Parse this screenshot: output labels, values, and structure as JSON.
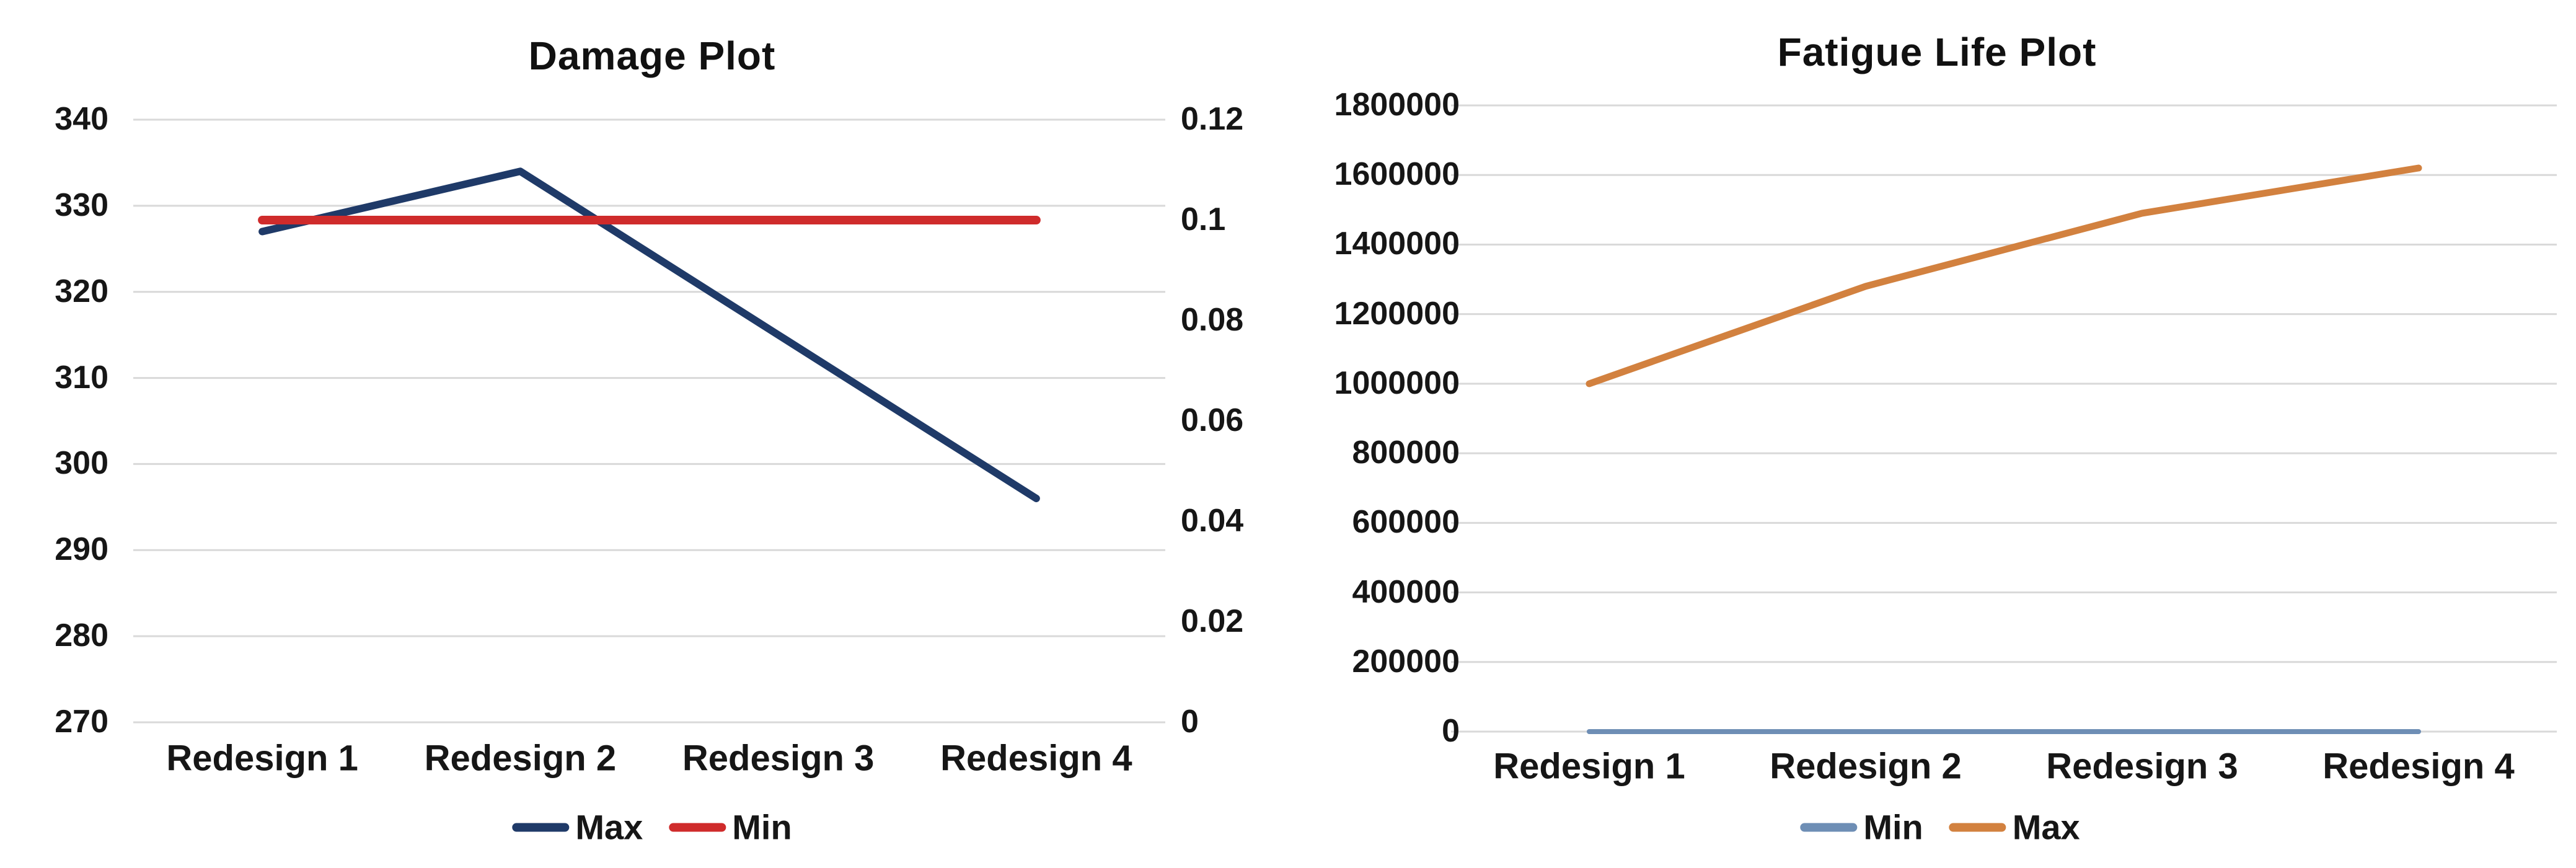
{
  "page": {
    "background": "#ffffff"
  },
  "chart_data": [
    {
      "type": "line",
      "title": "Damage Plot",
      "categories": [
        "Redesign 1",
        "Redesign 2",
        "Redesign 3",
        "Redesign 4"
      ],
      "series": [
        {
          "name": "Max",
          "axis": "primary",
          "color": "#1f3a68",
          "stroke_width": 12,
          "values": [
            327,
            334,
            315,
            296
          ]
        },
        {
          "name": "Min",
          "axis": "secondary",
          "color": "#cf2b2b",
          "stroke_width": 14,
          "values": [
            0.1,
            0.1,
            0.1,
            0.1
          ]
        }
      ],
      "primary_axis": {
        "min": 270,
        "max": 340,
        "ticks": [
          "340",
          "330",
          "320",
          "310",
          "300",
          "290",
          "280",
          "270"
        ]
      },
      "secondary_axis": {
        "min": 0,
        "max": 0.12,
        "ticks": [
          "0.12",
          "0.1",
          "0.08",
          "0.06",
          "0.04",
          "0.02",
          "0"
        ]
      },
      "legend": [
        {
          "label": "Max",
          "color": "#1f3a68"
        },
        {
          "label": "Min",
          "color": "#cf2b2b"
        }
      ],
      "grid": true,
      "legend_position": "bottom"
    },
    {
      "type": "line",
      "title": "Fatigue Life Plot",
      "categories": [
        "Redesign 1",
        "Redesign 2",
        "Redesign 3",
        "Redesign 4"
      ],
      "series": [
        {
          "name": "Min",
          "axis": "primary",
          "color": "#6e8eb5",
          "stroke_width": 8,
          "values": [
            0,
            0,
            0,
            0
          ]
        },
        {
          "name": "Max",
          "axis": "primary",
          "color": "#d2813f",
          "stroke_width": 11,
          "values": [
            1000000,
            1280000,
            1490000,
            1620000
          ]
        }
      ],
      "primary_axis": {
        "min": 0,
        "max": 1800000,
        "ticks": [
          "1800000",
          "1600000",
          "1400000",
          "1200000",
          "1000000",
          "800000",
          "600000",
          "400000",
          "200000",
          "0"
        ]
      },
      "legend": [
        {
          "label": "Min",
          "color": "#6e8eb5"
        },
        {
          "label": "Max",
          "color": "#d2813f"
        }
      ],
      "grid": true,
      "legend_position": "bottom"
    }
  ],
  "style": {
    "gridline_color": "#d9d9d9",
    "background": "#ffffff",
    "text_color": "#161616"
  }
}
